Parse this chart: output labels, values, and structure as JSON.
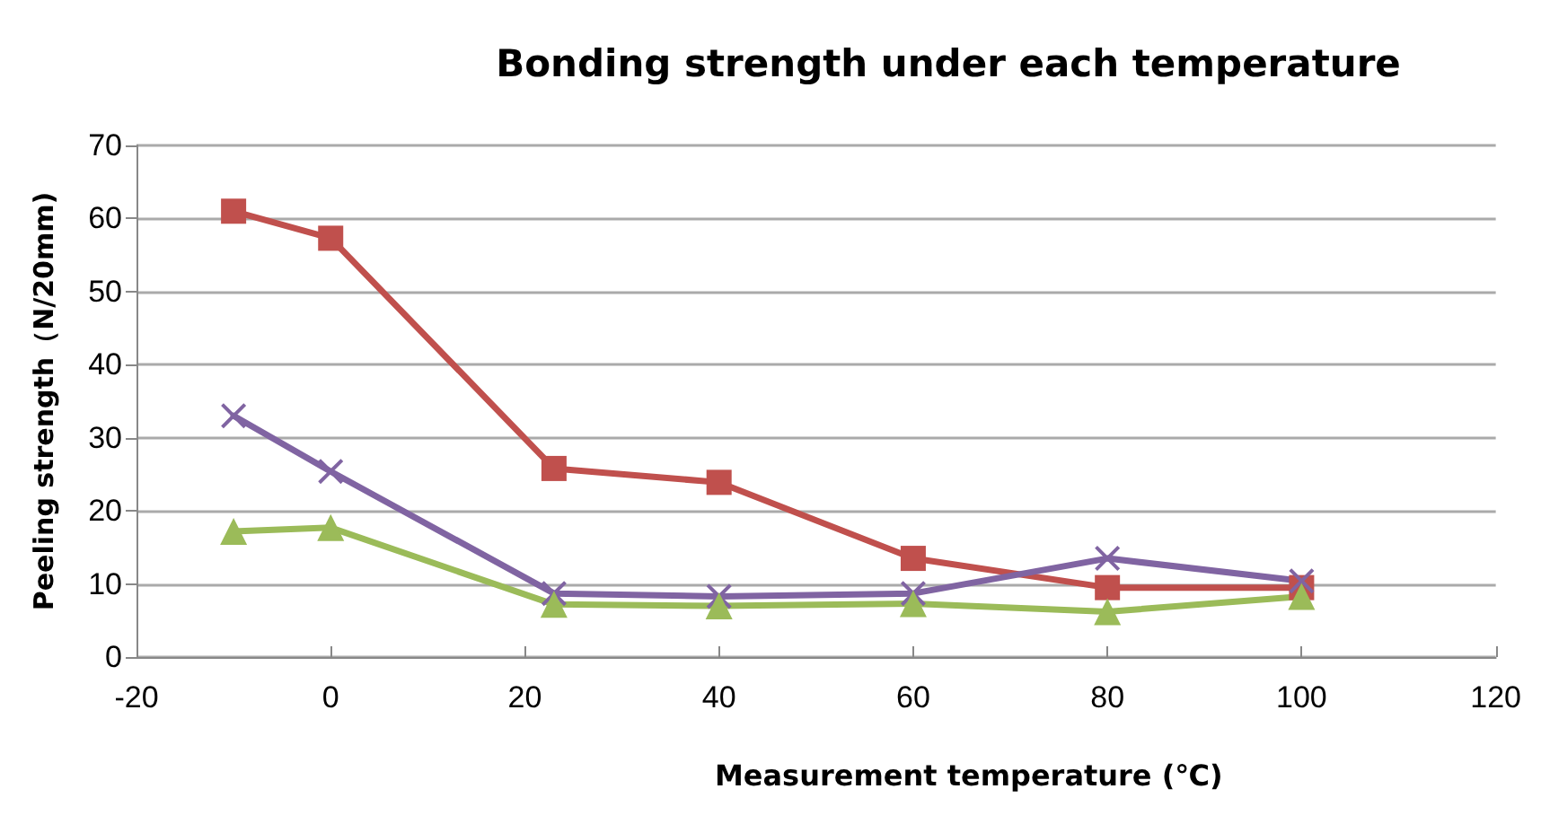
{
  "chart_data": {
    "type": "line",
    "title": "Bonding strength under each temperature",
    "xlabel": "Measurement temperature (℃)",
    "ylabel": "Peeling strength（N/20mm)",
    "x": [
      -10,
      0,
      23,
      40,
      60,
      80,
      100
    ],
    "series": [
      {
        "color": "#c0504d",
        "marker": "square",
        "values": [
          61,
          57.3,
          25.8,
          23.9,
          13.5,
          9.5,
          9.5
        ]
      },
      {
        "color": "#8064a2",
        "marker": "cross",
        "values": [
          33,
          25.4,
          8.7,
          8.3,
          8.7,
          13.5,
          10.4
        ]
      },
      {
        "color": "#9bbb59",
        "marker": "triangle",
        "values": [
          17.2,
          17.7,
          7.2,
          7,
          7.3,
          6.2,
          8.3
        ]
      }
    ],
    "xlim": [
      -20,
      120
    ],
    "xticks": [
      -20,
      0,
      20,
      40,
      60,
      80,
      100,
      120
    ],
    "ylim": [
      0,
      70
    ],
    "yticks": [
      0,
      10,
      20,
      30,
      40,
      50,
      60,
      70
    ],
    "grid": "y",
    "line_style": "solid"
  }
}
